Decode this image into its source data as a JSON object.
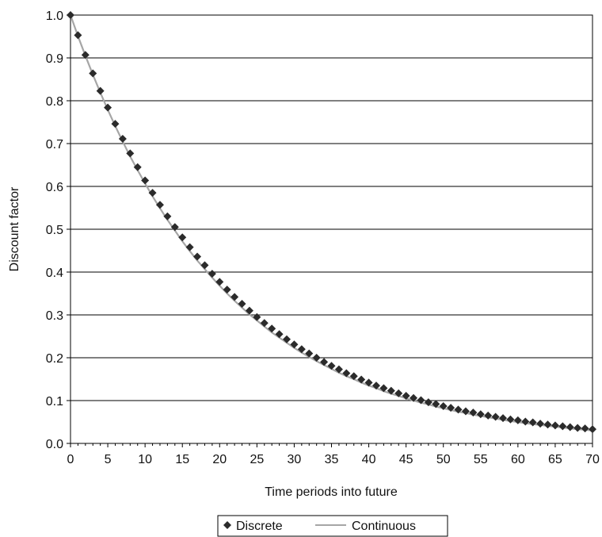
{
  "chart_data": {
    "type": "scatter",
    "title": "",
    "xlabel": "Time periods into future",
    "ylabel": "Discount factor",
    "xlim": [
      0,
      70
    ],
    "ylim": [
      0,
      1
    ],
    "x_ticks": [
      0,
      5,
      10,
      15,
      20,
      25,
      30,
      35,
      40,
      45,
      50,
      55,
      60,
      65,
      70
    ],
    "y_ticks": [
      "0.0",
      "0.1",
      "0.2",
      "0.3",
      "0.4",
      "0.5",
      "0.6",
      "0.7",
      "0.8",
      "0.9",
      "1.0"
    ],
    "grid": "horizontal",
    "legend_placement": "bottom-center",
    "series": [
      {
        "name": "Discrete",
        "marker": "diamond",
        "color": "#2b2b2b",
        "x": [
          0,
          1,
          2,
          3,
          4,
          5,
          6,
          7,
          8,
          9,
          10,
          11,
          12,
          13,
          14,
          15,
          16,
          17,
          18,
          19,
          20,
          21,
          22,
          23,
          24,
          25,
          26,
          27,
          28,
          29,
          30,
          31,
          32,
          33,
          34,
          35,
          36,
          37,
          38,
          39,
          40,
          41,
          42,
          43,
          44,
          45,
          46,
          47,
          48,
          49,
          50,
          51,
          52,
          53,
          54,
          55,
          56,
          57,
          58,
          59,
          60,
          61,
          62,
          63,
          64,
          65,
          66,
          67,
          68,
          69,
          70
        ],
        "values": [
          1.0,
          0.953,
          0.907,
          0.864,
          0.823,
          0.784,
          0.746,
          0.711,
          0.677,
          0.645,
          0.614,
          0.585,
          0.557,
          0.53,
          0.505,
          0.481,
          0.458,
          0.436,
          0.416,
          0.396,
          0.377,
          0.359,
          0.342,
          0.326,
          0.31,
          0.295,
          0.281,
          0.268,
          0.255,
          0.243,
          0.231,
          0.22,
          0.21,
          0.2,
          0.19,
          0.181,
          0.173,
          0.164,
          0.157,
          0.149,
          0.142,
          0.135,
          0.129,
          0.123,
          0.117,
          0.111,
          0.106,
          0.101,
          0.096,
          0.092,
          0.087,
          0.083,
          0.079,
          0.075,
          0.072,
          0.068,
          0.065,
          0.062,
          0.059,
          0.056,
          0.054,
          0.051,
          0.049,
          0.046,
          0.044,
          0.042,
          0.04,
          0.038,
          0.036,
          0.035,
          0.033
        ]
      },
      {
        "name": "Continuous",
        "type": "line",
        "color": "#a6a6a6",
        "x": [
          0,
          1,
          2,
          3,
          4,
          5,
          6,
          7,
          8,
          9,
          10,
          11,
          12,
          13,
          14,
          15,
          16,
          17,
          18,
          19,
          20,
          21,
          22,
          23,
          24,
          25,
          26,
          27,
          28,
          29,
          30,
          31,
          32,
          33,
          34,
          35,
          36,
          37,
          38,
          39,
          40,
          41,
          42,
          43,
          44,
          45,
          46,
          47,
          48,
          49,
          50,
          51,
          52,
          53,
          54,
          55,
          56,
          57,
          58,
          59,
          60,
          61,
          62,
          63,
          64,
          65,
          66,
          67,
          68,
          69,
          70
        ],
        "values": [
          1.0,
          0.951,
          0.905,
          0.861,
          0.819,
          0.779,
          0.741,
          0.705,
          0.67,
          0.638,
          0.607,
          0.577,
          0.549,
          0.522,
          0.497,
          0.472,
          0.449,
          0.427,
          0.407,
          0.387,
          0.368,
          0.35,
          0.333,
          0.317,
          0.301,
          0.287,
          0.273,
          0.259,
          0.247,
          0.235,
          0.223,
          0.212,
          0.202,
          0.192,
          0.183,
          0.174,
          0.165,
          0.157,
          0.15,
          0.142,
          0.135,
          0.129,
          0.122,
          0.116,
          0.111,
          0.105,
          0.1,
          0.095,
          0.091,
          0.086,
          0.082,
          0.078,
          0.074,
          0.071,
          0.067,
          0.064,
          0.061,
          0.058,
          0.055,
          0.052,
          0.05,
          0.047,
          0.045,
          0.043,
          0.041,
          0.039,
          0.037,
          0.035,
          0.033,
          0.032,
          0.03
        ]
      }
    ]
  }
}
